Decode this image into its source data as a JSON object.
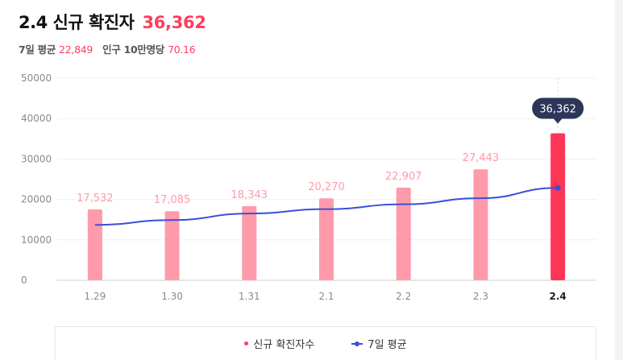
{
  "header": {
    "title": "2.4 신규 확진자",
    "total": "36,362",
    "avg_label": "7일 평균",
    "avg_value": "22,849",
    "pop_label": "인구 10만명당",
    "pop_value": "70.16"
  },
  "legend": {
    "bars_label": "신규 확진자수",
    "line_label": "7일 평균"
  },
  "colors": {
    "bar": "#ff9aaa",
    "bar_highlight": "#ff3556",
    "line": "#3a4fd8",
    "accent": "#ff3d5e",
    "tooltip_bg": "#2d3558"
  },
  "chart_data": {
    "type": "bar",
    "categories": [
      "1.29",
      "1.30",
      "1.31",
      "2.1",
      "2.2",
      "2.3",
      "2.4"
    ],
    "ylim": [
      0,
      50000
    ],
    "yticks": [
      0,
      10000,
      20000,
      30000,
      40000,
      50000
    ],
    "grid": true,
    "highlight_category": "2.4",
    "series": [
      {
        "type": "bar",
        "values": [
          17532,
          17085,
          18343,
          20270,
          22907,
          27443,
          36362
        ],
        "value_labels": [
          "17,532",
          "17,085",
          "18,343",
          "20,270",
          "22,907",
          "27,443",
          "36,362"
        ]
      },
      {
        "type": "line",
        "values": [
          13700,
          14900,
          16500,
          17600,
          18800,
          20300,
          22849
        ]
      }
    ],
    "legend_position": "bottom"
  }
}
